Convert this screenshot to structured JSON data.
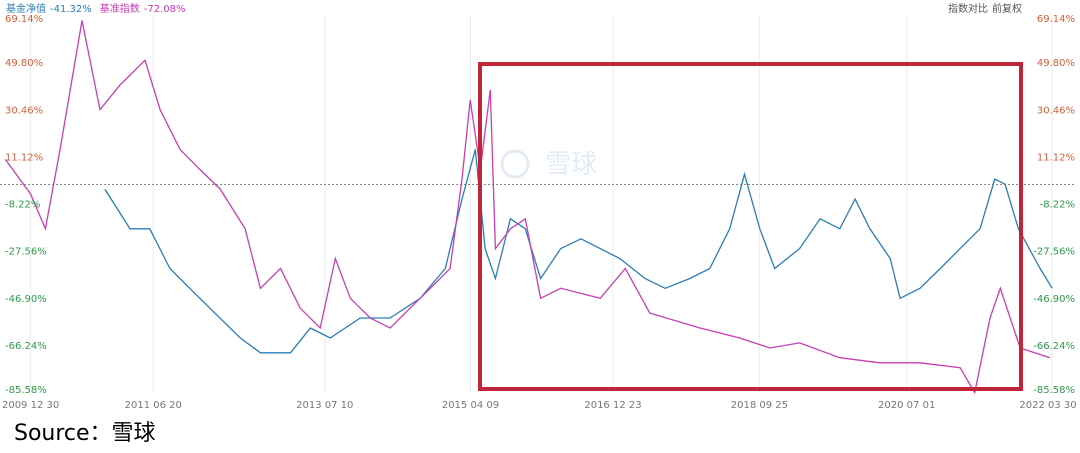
{
  "chart_data": {
    "type": "line",
    "controls": [
      "指数对比",
      "前复权"
    ],
    "watermark": "雪球",
    "source": "Source：雪球",
    "series": [
      {
        "name": "基金净值",
        "change": "-41.32%",
        "color": "#2a7db8",
        "x": [
          "2010-11-20",
          "2011-03-10",
          "2011-06-05",
          "2011-09-01",
          "2012-01-10",
          "2012-07-05",
          "2012-10-01",
          "2013-02-10",
          "2013-05-08",
          "2013-08-03",
          "2013-12-12",
          "2014-04-22",
          "2014-09-01",
          "2014-12-20",
          "2015-03-03",
          "2015-04-30",
          "2015-06-12",
          "2015-07-27",
          "2015-10-01",
          "2015-12-05",
          "2016-02-10",
          "2016-05-08",
          "2016-08-05",
          "2016-10-28",
          "2017-01-22",
          "2017-05-12",
          "2017-08-08",
          "2017-11-25",
          "2018-02-20",
          "2018-05-18",
          "2018-07-22",
          "2018-09-27",
          "2018-12-01",
          "2019-03-20",
          "2019-06-18",
          "2019-09-12",
          "2019-11-18",
          "2020-01-22",
          "2020-04-20",
          "2020-06-02",
          "2020-08-28",
          "2020-11-25",
          "2021-02-20",
          "2021-05-18",
          "2021-07-22",
          "2021-09-05",
          "2021-11-02",
          "2022-02-05",
          "2022-03-30"
        ],
        "values": [
          -1.9,
          -18.2,
          -18.2,
          -34.5,
          -46.7,
          -63.0,
          -69.1,
          -69.1,
          -58.9,
          -63.0,
          -54.8,
          -54.8,
          -46.7,
          -34.5,
          -6.0,
          14.4,
          -26.3,
          -38.6,
          -14.1,
          -18.2,
          -38.6,
          -26.3,
          -22.3,
          -26.3,
          -30.4,
          -38.6,
          -42.6,
          -38.6,
          -34.5,
          -18.2,
          4.2,
          -18.2,
          -34.5,
          -26.3,
          -14.1,
          -18.2,
          -6.0,
          -18.2,
          -30.4,
          -46.7,
          -42.6,
          -34.5,
          -26.3,
          -18.2,
          2.2,
          0.1,
          -18.2,
          -34.5,
          -42.6
        ]
      },
      {
        "name": "基准指数",
        "change": "-72.08%",
        "color": "#c43fb5",
        "x": [
          "2009-09-10",
          "2009-12-30",
          "2010-03-05",
          "2010-05-08",
          "2010-08-12",
          "2010-10-30",
          "2011-01-25",
          "2011-05-15",
          "2011-07-20",
          "2011-10-15",
          "2012-01-10",
          "2012-04-08",
          "2012-07-26",
          "2012-10-01",
          "2012-12-28",
          "2013-03-25",
          "2013-06-20",
          "2013-08-25",
          "2013-10-30",
          "2014-01-25",
          "2014-04-22",
          "2014-07-18",
          "2014-10-15",
          "2015-01-10",
          "2015-03-03",
          "2015-04-08",
          "2015-05-22",
          "2015-07-05",
          "2015-07-27",
          "2015-10-01",
          "2015-12-05",
          "2016-02-10",
          "2016-05-08",
          "2016-10-28",
          "2017-02-15",
          "2017-06-02",
          "2018-01-08",
          "2018-07-01",
          "2018-11-10",
          "2019-03-20",
          "2019-09-12",
          "2020-03-05",
          "2020-08-28",
          "2021-02-20",
          "2021-04-25",
          "2021-07-01",
          "2021-08-15",
          "2021-11-10",
          "2022-03-20"
        ],
        "values": [
          10.3,
          -3.9,
          -18.2,
          14.4,
          67.3,
          30.7,
          40.8,
          51.0,
          30.7,
          14.4,
          6.2,
          -1.9,
          -18.2,
          -42.6,
          -34.5,
          -50.8,
          -58.9,
          -30.4,
          -46.7,
          -54.8,
          -58.9,
          -50.8,
          -42.6,
          -34.5,
          2.2,
          34.7,
          6.2,
          38.8,
          -26.3,
          -18.2,
          -14.1,
          -46.7,
          -42.6,
          -46.7,
          -34.5,
          -52.8,
          -58.9,
          -63.0,
          -67.1,
          -65.0,
          -71.1,
          -73.2,
          -73.2,
          -75.2,
          -85.4,
          -54.8,
          -42.6,
          -67.1,
          -71.1
        ]
      }
    ],
    "xlim": [
      "2009-08-18",
      "2022-07-08"
    ],
    "xticks": [
      {
        "value": "2009-12-30",
        "label": "2009 12 30"
      },
      {
        "value": "2011-06-20",
        "label": "2011 06 20"
      },
      {
        "value": "2013-07-10",
        "label": "2013 07 10"
      },
      {
        "value": "2015-04-09",
        "label": "2015 04 09"
      },
      {
        "value": "2016-12-23",
        "label": "2016 12 23"
      },
      {
        "value": "2018-09-25",
        "label": "2018 09 25"
      },
      {
        "value": "2020-07-01",
        "label": "2020 07 01"
      },
      {
        "value": "2022-03-30",
        "label": "2022 03 30"
      }
    ],
    "ylim": [
      -85.58,
      69.14
    ],
    "yticks": [
      {
        "value": 69.14,
        "label": "69.14%"
      },
      {
        "value": 49.8,
        "label": "49.80%"
      },
      {
        "value": 30.46,
        "label": "30.46%"
      },
      {
        "value": 11.12,
        "label": "11.12%"
      },
      {
        "value": -8.22,
        "label": "-8.22%"
      },
      {
        "value": -27.56,
        "label": "-27.56%"
      },
      {
        "value": -46.9,
        "label": "-46.90%"
      },
      {
        "value": -66.24,
        "label": "-66.24%"
      },
      {
        "value": -85.58,
        "label": "-85.58%"
      }
    ],
    "reference_line": 0,
    "grid": true,
    "positive_color": "#d0603a",
    "negative_color": "#2e9a4a"
  }
}
